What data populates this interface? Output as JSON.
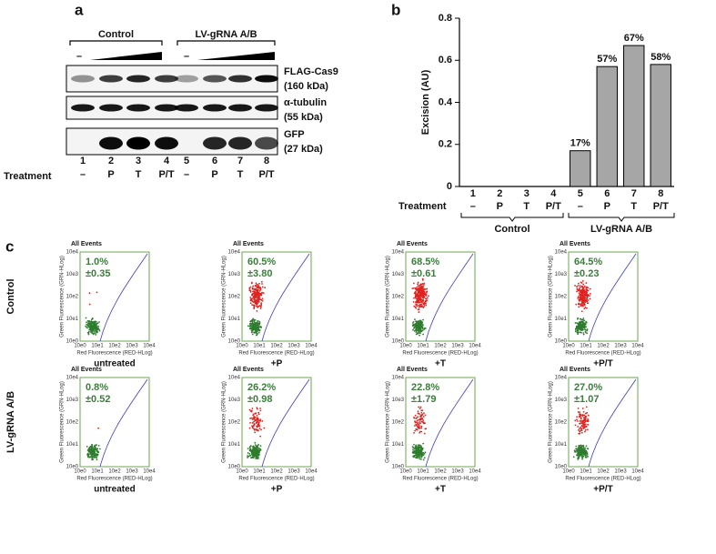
{
  "panel_a": {
    "label": "a",
    "groups": [
      "Control",
      "LV-gRNA A/B"
    ],
    "doses": [
      "–",
      "–"
    ],
    "blots": [
      {
        "name": "FLAG-Cas9",
        "size": "(160 kDa)"
      },
      {
        "name": "α-tubulin",
        "size": "(55 kDa)"
      },
      {
        "name": "GFP",
        "size": "(27 kDa)"
      }
    ],
    "lanes": [
      "1",
      "2",
      "3",
      "4",
      "5",
      "6",
      "7",
      "8"
    ],
    "treatment_label": "Treatment",
    "treatments": [
      "–",
      "P",
      "T",
      "P/T",
      "–",
      "P",
      "T",
      "P/T"
    ]
  },
  "chart_data": {
    "type": "bar",
    "panel_label": "b",
    "ylabel": "Excision (AU)",
    "categories": [
      "1",
      "2",
      "3",
      "4",
      "5",
      "6",
      "7",
      "8"
    ],
    "values": [
      0,
      0,
      0,
      0,
      0.17,
      0.57,
      0.67,
      0.58
    ],
    "value_labels": [
      null,
      null,
      null,
      null,
      "17%",
      "57%",
      "67%",
      "58%"
    ],
    "color": "#a6a6a6",
    "ylim": [
      0,
      0.8
    ],
    "yticks": [
      0,
      0.2,
      0.4,
      0.6,
      0.8
    ],
    "treatment_label": "Treatment",
    "treatments": [
      "–",
      "P",
      "T",
      "P/T",
      "–",
      "P",
      "T",
      "P/T"
    ],
    "groups": [
      "Control",
      "LV-gRNA A/B"
    ]
  },
  "panel_c": {
    "label": "c",
    "plot_title": "All Events",
    "x_axis_label": "Red Fluorescence (RED-HLog)",
    "y_axis_label": "Green Fluorescence (GRN-HLog)",
    "ticks": [
      "10e0",
      "10e1",
      "10e2",
      "10e3",
      "10e4"
    ],
    "conditions": [
      "untreated",
      "+P",
      "+T",
      "+P/T"
    ],
    "rows": [
      {
        "label": "Control",
        "plots": [
          {
            "percent": "1.0%",
            "sd": "±0.35"
          },
          {
            "percent": "60.5%",
            "sd": "±3.80"
          },
          {
            "percent": "68.5%",
            "sd": "±0.61"
          },
          {
            "percent": "64.5%",
            "sd": "±0.23"
          }
        ]
      },
      {
        "label": "LV-gRNA A/B",
        "plots": [
          {
            "percent": "0.8%",
            "sd": "±0.52"
          },
          {
            "percent": "26.2%",
            "sd": "±0.98"
          },
          {
            "percent": "22.8%",
            "sd": "±1.79"
          },
          {
            "percent": "27.0%",
            "sd": "±1.07"
          }
        ]
      }
    ]
  }
}
